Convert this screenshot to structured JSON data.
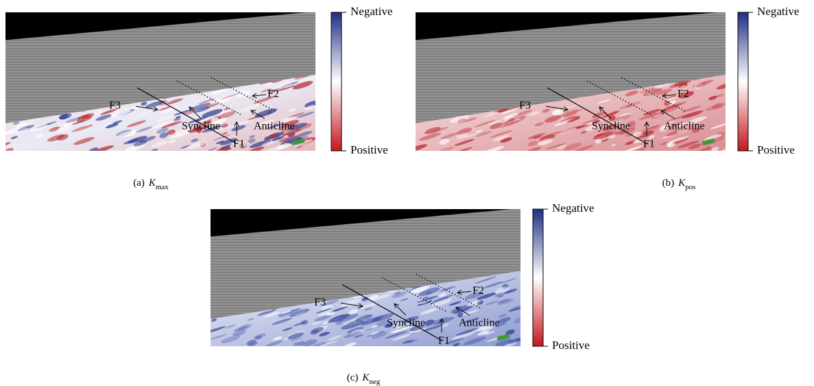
{
  "panels": [
    {
      "label": "(a)",
      "symbol": "K",
      "subscript": "max",
      "colorbar": {
        "top": "Negative",
        "bottom": "Positive"
      },
      "annotations": [
        "F3",
        "Syncline",
        "F1",
        "Anticline",
        "F2"
      ]
    },
    {
      "label": "(b)",
      "symbol": "K",
      "subscript": "pos",
      "colorbar": {
        "top": "Negative",
        "bottom": "Positive"
      },
      "annotations": [
        "F3",
        "Syncline",
        "F1",
        "Anticline",
        "F2"
      ]
    },
    {
      "label": "(c)",
      "symbol": "K",
      "subscript": "neg",
      "colorbar": {
        "top": "Negative",
        "bottom": "Positive"
      },
      "annotations": [
        "F3",
        "Syncline",
        "F1",
        "Anticline",
        "F2"
      ]
    }
  ]
}
